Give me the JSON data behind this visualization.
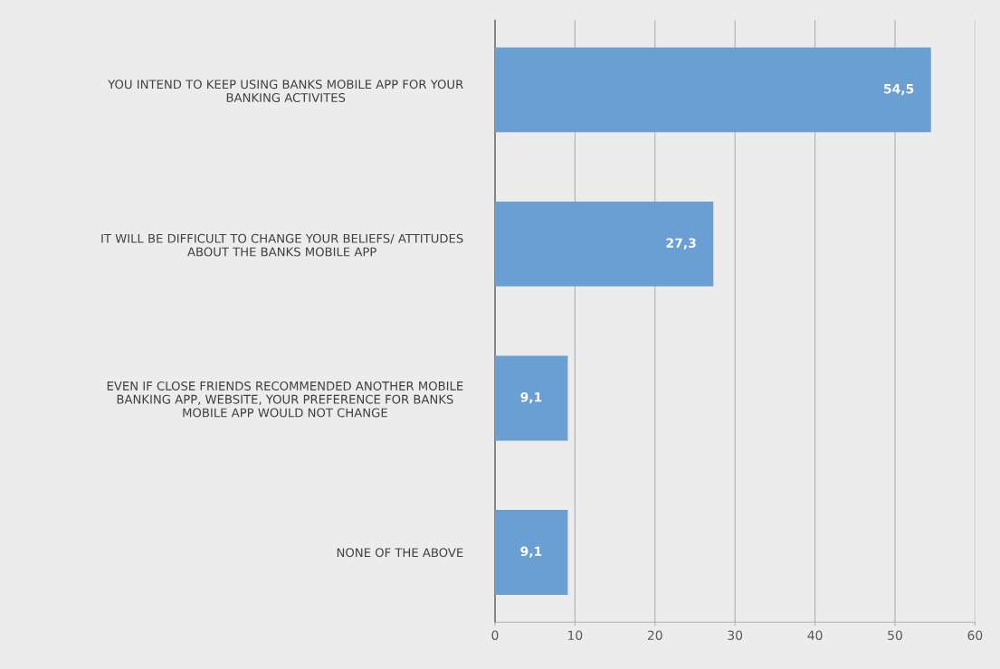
{
  "chart_data": {
    "type": "bar",
    "orientation": "horizontal",
    "categories": [
      "YOU INTEND TO KEEP USING BANKS MOBILE APP FOR YOUR\nBANKING ACTIVITES",
      "IT WILL BE DIFFICULT TO CHANGE YOUR BELIEFS/ ATTITUDES\nABOUT THE BANKS MOBILE APP",
      "EVEN IF CLOSE FRIENDS RECOMMENDED ANOTHER MOBILE\nBANKING APP, WEBSITE, YOUR PREFERENCE FOR BANKS\nMOBILE APP WOULD NOT CHANGE",
      "NONE OF THE ABOVE"
    ],
    "values": [
      54.5,
      27.3,
      9.1,
      9.1
    ],
    "value_labels": [
      "54,5",
      "27,3",
      "9,1",
      "9,1"
    ],
    "color": "#6a9fd4",
    "xlim": [
      0,
      60
    ],
    "xticks": [
      0,
      10,
      20,
      30,
      40,
      50,
      60
    ],
    "grid": "x"
  }
}
